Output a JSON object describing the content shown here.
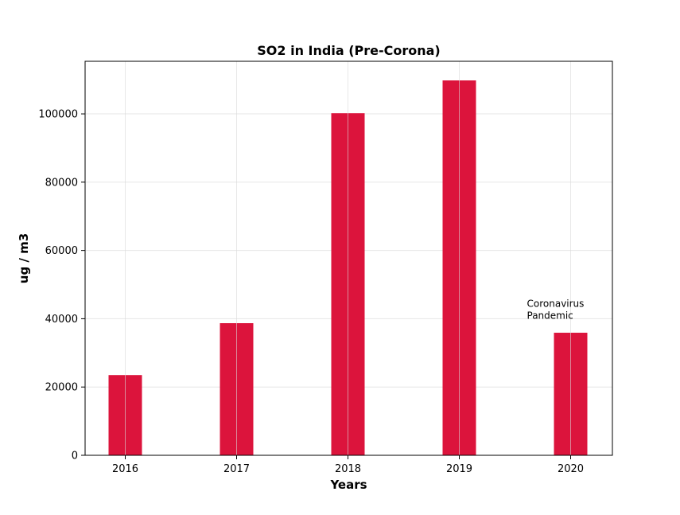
{
  "chart_data": {
    "type": "bar",
    "title": "SO2 in India (Pre-Corona)",
    "xlabel": "Years",
    "ylabel": "ug / m3",
    "categories": [
      "2016",
      "2017",
      "2018",
      "2019",
      "2020"
    ],
    "values": [
      23500,
      38700,
      100200,
      109800,
      35900
    ],
    "ylim": [
      0,
      115400
    ],
    "yticks": [
      0,
      20000,
      40000,
      60000,
      80000,
      100000
    ],
    "ytick_labels": [
      "0",
      "20000",
      "40000",
      "60000",
      "80000",
      "100000"
    ],
    "bar_color": "#dc143c",
    "grid": true,
    "annotation": {
      "lines": [
        "Coronavirus",
        "Pandemic"
      ],
      "category": "2020",
      "y": 40000
    }
  }
}
